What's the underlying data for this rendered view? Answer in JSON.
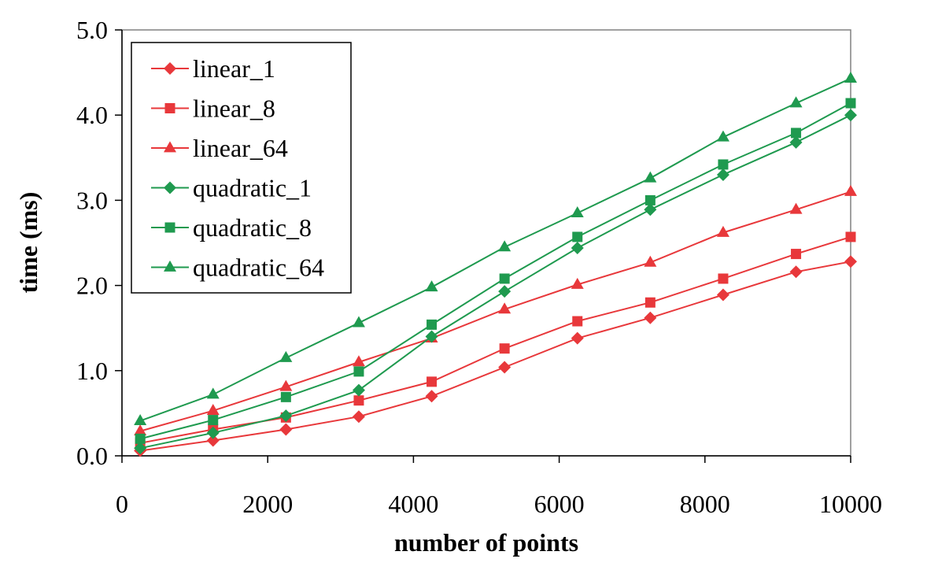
{
  "chart_data": {
    "type": "line",
    "title": "",
    "xlabel": "number of points",
    "ylabel": "time (ms)",
    "xlim": [
      0,
      10000
    ],
    "ylim": [
      0,
      5
    ],
    "x_ticks": [
      0,
      2000,
      4000,
      6000,
      8000,
      10000
    ],
    "x_tick_labels": [
      "0",
      "2000",
      "4000",
      "6000",
      "8000",
      "10000"
    ],
    "y_ticks": [
      0,
      1,
      2,
      3,
      4,
      5
    ],
    "y_tick_labels": [
      "0.0",
      "1.0",
      "2.0",
      "3.0",
      "4.0",
      "5.0"
    ],
    "grid": false,
    "legend_position": "top-left",
    "x": [
      250,
      1250,
      2250,
      3250,
      4250,
      5250,
      6250,
      7250,
      8250,
      9250,
      10000
    ],
    "series": [
      {
        "name": "linear_1",
        "color": "#e8383b",
        "marker": "diamond",
        "values": [
          0.06,
          0.18,
          0.31,
          0.46,
          0.7,
          1.04,
          1.38,
          1.62,
          1.89,
          2.16,
          2.28
        ]
      },
      {
        "name": "linear_8",
        "color": "#e8383b",
        "marker": "square",
        "values": [
          0.15,
          0.31,
          0.45,
          0.65,
          0.87,
          1.26,
          1.58,
          1.8,
          2.08,
          2.37,
          2.57
        ]
      },
      {
        "name": "linear_64",
        "color": "#e8383b",
        "marker": "triangle",
        "values": [
          0.29,
          0.53,
          0.81,
          1.1,
          1.38,
          1.72,
          2.01,
          2.27,
          2.62,
          2.89,
          3.1
        ]
      },
      {
        "name": "quadratic_1",
        "color": "#1f9a4f",
        "marker": "diamond",
        "values": [
          0.09,
          0.27,
          0.47,
          0.77,
          1.4,
          1.93,
          2.44,
          2.89,
          3.3,
          3.68,
          4.0
        ]
      },
      {
        "name": "quadratic_8",
        "color": "#1f9a4f",
        "marker": "square",
        "values": [
          0.2,
          0.42,
          0.69,
          0.99,
          1.54,
          2.08,
          2.57,
          3.0,
          3.42,
          3.79,
          4.14
        ]
      },
      {
        "name": "quadratic_64",
        "color": "#1f9a4f",
        "marker": "triangle",
        "values": [
          0.41,
          0.72,
          1.15,
          1.56,
          1.98,
          2.45,
          2.85,
          3.26,
          3.74,
          4.14,
          4.43
        ]
      }
    ]
  }
}
